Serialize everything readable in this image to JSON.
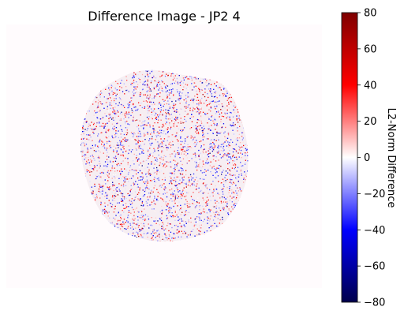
{
  "chart_data": {
    "type": "heatmap",
    "title": "Difference Image - JP2 4",
    "colormap": "seismic",
    "colormap_stops": [
      "#00004c",
      "#0000ff",
      "#ffffff",
      "#ff0000",
      "#7f0000"
    ],
    "background_color": "#fffbfd",
    "axes_visible": false,
    "colorbar": {
      "label": "L2-Norm Difference",
      "vmin": -80,
      "vmax": 80,
      "ticks": [
        80,
        60,
        40,
        20,
        0,
        -20,
        -40,
        -60,
        -80
      ],
      "tick_labels": [
        "80",
        "60",
        "40",
        "20",
        "0",
        "−20",
        "−40",
        "−60",
        "−80"
      ]
    },
    "description_values": {
      "center_value": 0,
      "noise_range": [
        -80,
        80
      ]
    }
  }
}
